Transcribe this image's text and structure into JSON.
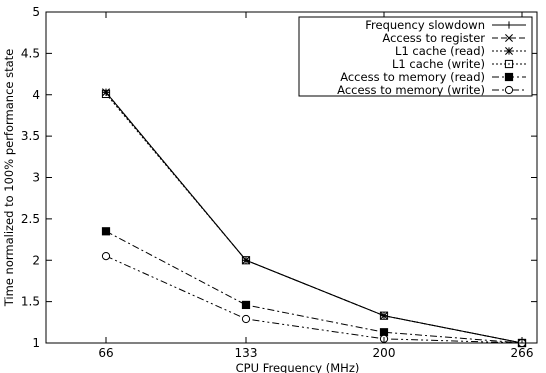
{
  "chart_data": {
    "type": "line",
    "title": "",
    "xlabel": "CPU Frequency (MHz)",
    "ylabel": "Time normalized to 100% performance state",
    "categories": [
      "66",
      "133",
      "200",
      "266"
    ],
    "ylim": [
      1,
      5
    ],
    "yticks": [
      "1",
      "1.5",
      "2",
      "2.5",
      "3",
      "3.5",
      "4",
      "4.5",
      "5"
    ],
    "legend_position": "top-right",
    "series": [
      {
        "name": "Frequency slowdown",
        "values": [
          4.03,
          2.0,
          1.33,
          1.0
        ],
        "dash": "solid",
        "marker": "plus"
      },
      {
        "name": "Access to register",
        "values": [
          4.03,
          2.0,
          1.33,
          1.0
        ],
        "dash": "dashed",
        "marker": "x"
      },
      {
        "name": "L1 cache (read)",
        "values": [
          4.03,
          2.0,
          1.33,
          1.0
        ],
        "dash": "dotted",
        "marker": "star"
      },
      {
        "name": "L1 cache (write)",
        "values": [
          4.01,
          2.0,
          1.33,
          1.0
        ],
        "dash": "dotted",
        "marker": "square-open"
      },
      {
        "name": "Access to memory (read)",
        "values": [
          2.35,
          1.46,
          1.13,
          1.0
        ],
        "dash": "dashdot",
        "marker": "square-filled"
      },
      {
        "name": "Access to memory (write)",
        "values": [
          2.05,
          1.29,
          1.05,
          1.0
        ],
        "dash": "dashdotdot",
        "marker": "circle-open"
      }
    ]
  }
}
